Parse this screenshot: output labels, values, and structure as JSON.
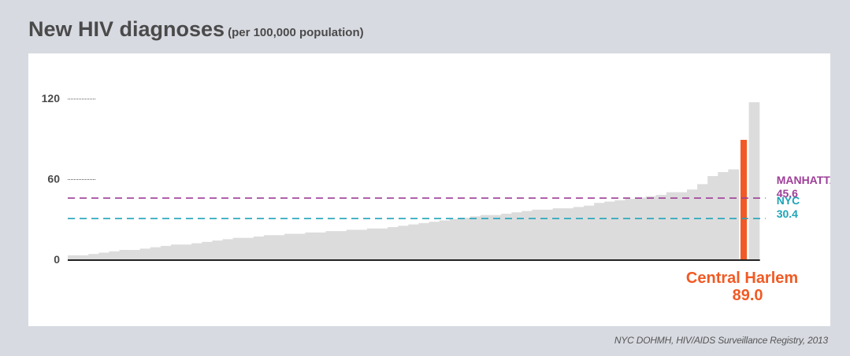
{
  "header": {
    "title": "New HIV diagnoses",
    "subtitle": "(per 100,000 population)"
  },
  "source": "NYC DOHMH, HIV/AIDS Surveillance Registry, 2013",
  "colors": {
    "bar": "#dcdcdc",
    "highlight": "#f15a24",
    "manhattan": "#9e3f98",
    "nyc": "#1fa4b9",
    "axis": "#222222",
    "text": "#4a4a4a"
  },
  "chart_data": {
    "type": "bar",
    "ylim": [
      0,
      120
    ],
    "yticks": [
      {
        "value": 120,
        "label": "120"
      },
      {
        "value": 60,
        "label": "60"
      },
      {
        "value": 0,
        "label": "0"
      }
    ],
    "values": [
      3,
      3,
      4,
      5,
      6,
      7,
      7,
      8,
      9,
      10,
      11,
      11,
      12,
      13,
      14,
      15,
      16,
      16,
      17,
      18,
      18,
      19,
      19,
      20,
      20,
      21,
      21,
      22,
      22,
      23,
      23,
      24,
      25,
      26,
      27,
      28,
      29,
      30,
      31,
      32,
      33,
      33,
      34,
      35,
      36,
      37,
      37,
      38,
      38,
      39,
      40,
      42,
      43,
      44,
      45,
      46,
      47,
      48,
      50,
      50,
      52,
      56,
      62,
      65,
      67,
      89,
      117
    ],
    "highlight": {
      "index": 65,
      "name": "Central Harlem",
      "value": 89.0,
      "value_label": "89.0"
    },
    "reference_lines": [
      {
        "name": "MANHATTAN",
        "value": 45.6,
        "value_label": "45.6",
        "color": "#9e3f98",
        "style": "dashed"
      },
      {
        "name": "NYC",
        "value": 30.4,
        "value_label": "30.4",
        "color": "#1fa4b9",
        "style": "dashed"
      }
    ],
    "grid": false
  }
}
